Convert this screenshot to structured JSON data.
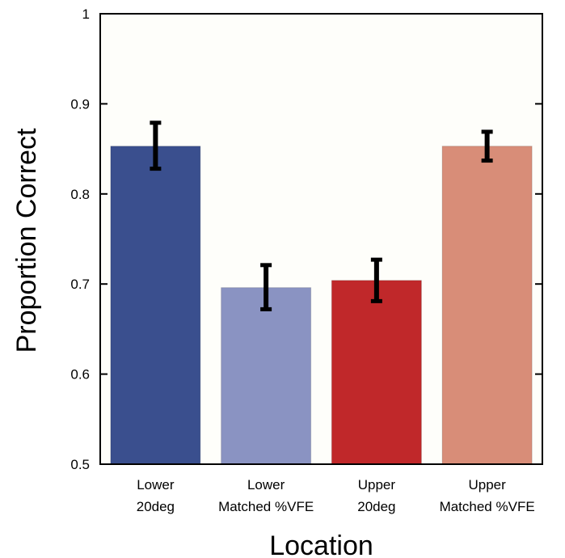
{
  "chart_data": {
    "type": "bar",
    "title": "",
    "xlabel": "Location",
    "ylabel": "Proportion Correct",
    "ylim": [
      0.5,
      1.0
    ],
    "yticks": [
      0.5,
      0.6,
      0.7,
      0.8,
      0.9,
      1.0
    ],
    "ytick_labels": [
      "0.5",
      "0.6",
      "0.7",
      "0.8",
      "0.9",
      "1"
    ],
    "grid": false,
    "legend": "none",
    "categories": [
      {
        "line1": "Lower",
        "line2": "20deg"
      },
      {
        "line1": "Lower",
        "line2": "Matched %VFE"
      },
      {
        "line1": "Upper",
        "line2": "20deg"
      },
      {
        "line1": "Upper",
        "line2": "Matched %VFE"
      }
    ],
    "values": [
      0.853,
      0.696,
      0.704,
      0.853
    ],
    "error_low": [
      0.828,
      0.672,
      0.681,
      0.837
    ],
    "error_high": [
      0.879,
      0.721,
      0.727,
      0.869
    ],
    "colors": [
      "#3A4F8E",
      "#8A93C2",
      "#C0282A",
      "#D88D78"
    ],
    "error_bar_color": "#000000",
    "plot_background": "#FEFEFA"
  }
}
